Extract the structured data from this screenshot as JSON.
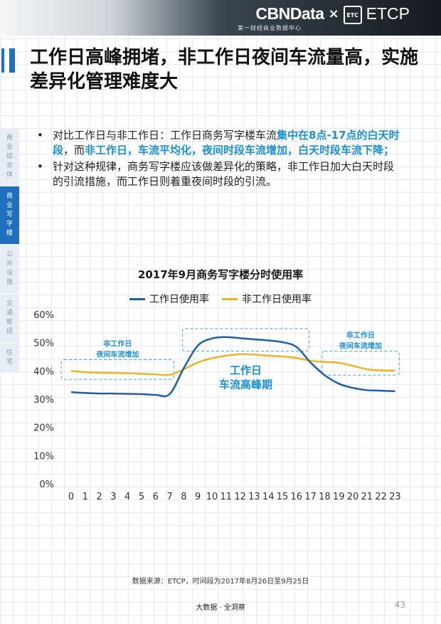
{
  "header": {
    "brand_left": "CBNData",
    "brand_x": "×",
    "etc_mark": "ETC",
    "brand_right": "ETCP",
    "brand_sub": "第一财经商业数据中心"
  },
  "title": "工作日高峰拥堵，非工作日夜间车流量高，实施差异化管理难度大",
  "side_tabs": [
    {
      "label": "商业综合体",
      "active": false
    },
    {
      "label": "商业写字楼",
      "active": true
    },
    {
      "label": "公共设施",
      "active": false
    },
    {
      "label": "交通枢纽",
      "active": false
    },
    {
      "label": "住宅",
      "active": false
    }
  ],
  "bullets": [
    {
      "parts": [
        {
          "text": "对比工作日与非工作日：工作日商务写字楼车流",
          "hl": false
        },
        {
          "text": "集中在8点-17点的白天时段",
          "hl": true
        },
        {
          "text": "，而",
          "hl": false
        },
        {
          "text": "非工作日，车流平均化，夜间时段车流增加，白天时段车流下降；",
          "hl": true
        }
      ]
    },
    {
      "parts": [
        {
          "text": "针对这种规律，商务写字楼应该做差异化的策略，非工作日加大白天时段的引流措施，而工作日则着重夜间时段的引流。",
          "hl": false
        }
      ]
    }
  ],
  "chart_data": {
    "type": "line",
    "title": "2017年9月商务写字楼分时使用率",
    "x": [
      "0",
      "1",
      "2",
      "3",
      "4",
      "5",
      "6",
      "7",
      "8",
      "9",
      "10",
      "11",
      "12",
      "13",
      "14",
      "15",
      "16",
      "17",
      "18",
      "19",
      "20",
      "21",
      "22",
      "23"
    ],
    "yticks": [
      "0%",
      "10%",
      "20%",
      "30%",
      "40%",
      "50%",
      "60%"
    ],
    "ylim": [
      0,
      60
    ],
    "series": [
      {
        "name": "工作日使用率",
        "color": "#1f5fa8",
        "values": [
          32.5,
          32.2,
          32.0,
          32.0,
          31.9,
          31.8,
          31.5,
          31.8,
          41,
          49,
          51.5,
          52,
          51.6,
          51.2,
          50.8,
          50.2,
          48.5,
          43,
          38.5,
          35.5,
          34,
          33.2,
          33.0,
          32.8
        ]
      },
      {
        "name": "非工作日使用率",
        "color": "#f0b323",
        "values": [
          40.0,
          39.6,
          39.4,
          39.3,
          39.2,
          39.0,
          38.8,
          38.6,
          40.6,
          43.0,
          44.5,
          45.4,
          45.9,
          45.8,
          45.4,
          45.1,
          44.6,
          43.6,
          43.2,
          42.9,
          41.8,
          40.6,
          40.2,
          40.1
        ]
      }
    ],
    "annotations": [
      {
        "lines": [
          "非工作日",
          "夜间车流增加"
        ],
        "x_range": [
          -0.7,
          7.3
        ],
        "y_range": [
          37,
          44
        ]
      },
      {
        "lines": [
          "非工作日",
          "夜间车流增加"
        ],
        "x_range": [
          17.8,
          23.3
        ],
        "y_range": [
          38.5,
          47
        ]
      },
      {
        "lines": [
          "工作日",
          "车流高峰期"
        ],
        "x_range": [
          7.9,
          16.9
        ],
        "y_range": [
          47,
          55
        ]
      }
    ],
    "legend_position": "top",
    "grid": false
  },
  "source": "数据来源：ETCP，时间段为2017年8月26日至9月25日",
  "footer": "大数据 · 全洞察",
  "page_number": "43"
}
